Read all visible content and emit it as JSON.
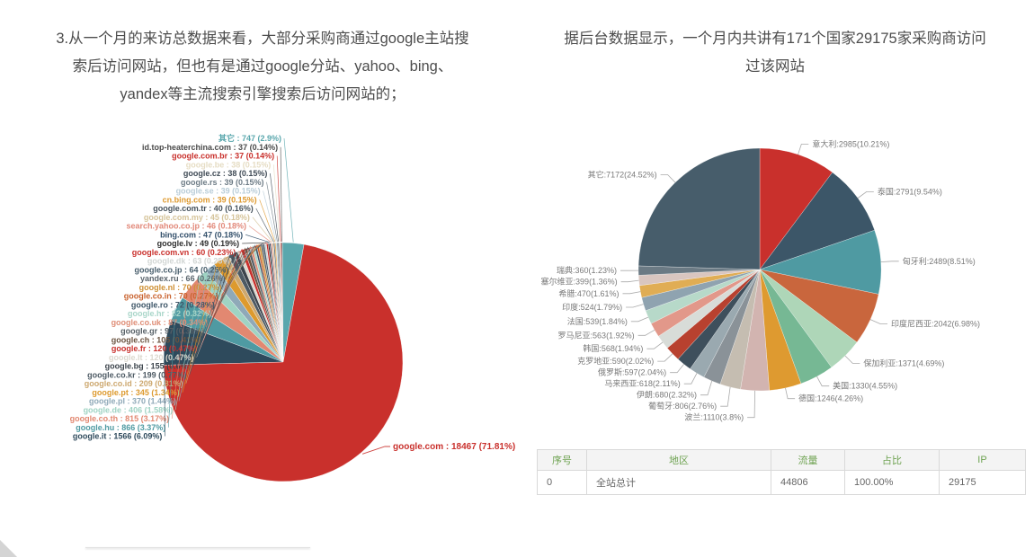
{
  "texts": {
    "left_paragraph": "3.从一个月的来访总数据来看，大部分采购商通过google主站搜\n索后访问网站，但也有是通过google分站、yahoo、bing、\nyandex等主流搜索引擎搜索后访问网站的；",
    "right_paragraph": "据后台数据显示，一个月内共讲有171个国家29175家采购商访问\n过该网站"
  },
  "chart_data": [
    {
      "id": "search-engine-sources",
      "type": "pie",
      "title": "",
      "label_format": "{label} : {value} ({pct})",
      "direction": "counterclockwise",
      "start_angle_deg_cw_from_top": 10,
      "legend_position": "stacked-left",
      "slices": [
        {
          "label": "其它",
          "value": 747,
          "pct": "2.9%",
          "color": "#5aa7ad"
        },
        {
          "label": "id.top-heaterchina.com",
          "value": 37,
          "pct": "0.14%",
          "color": "#4a4a4a"
        },
        {
          "label": "google.com.br",
          "value": 37,
          "pct": "0.14%",
          "color": "#c9302c"
        },
        {
          "label": "google.be",
          "value": 38,
          "pct": "0.15%",
          "color": "#e6ddc4"
        },
        {
          "label": "google.cz",
          "value": 38,
          "pct": "0.15%",
          "color": "#3f4a55"
        },
        {
          "label": "google.rs",
          "value": 39,
          "pct": "0.15%",
          "color": "#6d7b85"
        },
        {
          "label": "google.se",
          "value": 39,
          "pct": "0.15%",
          "color": "#b9cdd8"
        },
        {
          "label": "cn.bing.com",
          "value": 39,
          "pct": "0.15%",
          "color": "#de9a30"
        },
        {
          "label": "google.com.tr",
          "value": 40,
          "pct": "0.16%",
          "color": "#46525c"
        },
        {
          "label": "google.com.my",
          "value": 45,
          "pct": "0.18%",
          "color": "#d6c49a"
        },
        {
          "label": "search.yahoo.co.jp",
          "value": 46,
          "pct": "0.18%",
          "color": "#e2897a"
        },
        {
          "label": "bing.com",
          "value": 47,
          "pct": "0.18%",
          "color": "#33506b"
        },
        {
          "label": "google.lv",
          "value": 49,
          "pct": "0.19%",
          "color": "#2f2f2f"
        },
        {
          "label": "google.com.vn",
          "value": 60,
          "pct": "0.23%",
          "color": "#c9302c"
        },
        {
          "label": "google.dk",
          "value": 63,
          "pct": "0.25%",
          "color": "#d2d6d4"
        },
        {
          "label": "google.co.jp",
          "value": 64,
          "pct": "0.25%",
          "color": "#475d6b"
        },
        {
          "label": "yandex.ru",
          "value": 66,
          "pct": "0.26%",
          "color": "#5a646c"
        },
        {
          "label": "google.nl",
          "value": 70,
          "pct": "0.27%",
          "color": "#cf9136"
        },
        {
          "label": "google.co.in",
          "value": 70,
          "pct": "0.27%",
          "color": "#c9632f"
        },
        {
          "label": "google.ro",
          "value": 72,
          "pct": "0.28%",
          "color": "#3e5668"
        },
        {
          "label": "google.hr",
          "value": 82,
          "pct": "0.32%",
          "color": "#a9d6c9"
        },
        {
          "label": "google.co.uk",
          "value": 87,
          "pct": "0.34%",
          "color": "#df8d76"
        },
        {
          "label": "google.gr",
          "value": 97,
          "pct": "0.38%",
          "color": "#555f66"
        },
        {
          "label": "google.ch",
          "value": 105,
          "pct": "0.41%",
          "color": "#6b5340"
        },
        {
          "label": "google.fr",
          "value": 120,
          "pct": "0.47%",
          "color": "#c9302c"
        },
        {
          "label": "google.lt",
          "value": 120,
          "pct": "0.47%",
          "color": "#dcd8ce"
        },
        {
          "label": "google.bg",
          "value": 155,
          "pct": "0.6%",
          "color": "#3c444c"
        },
        {
          "label": "google.co.kr",
          "value": 199,
          "pct": "0.77%",
          "color": "#4d5a64"
        },
        {
          "label": "google.co.id",
          "value": 209,
          "pct": "0.81%",
          "color": "#cda86f"
        },
        {
          "label": "google.pt",
          "value": 345,
          "pct": "1.34%",
          "color": "#dd9a2e"
        },
        {
          "label": "google.pl",
          "value": 370,
          "pct": "1.44%",
          "color": "#8fa9b8"
        },
        {
          "label": "google.de",
          "value": 406,
          "pct": "1.58%",
          "color": "#9fd3c3"
        },
        {
          "label": "google.co.th",
          "value": 815,
          "pct": "3.17%",
          "color": "#e28871"
        },
        {
          "label": "google.hu",
          "value": 866,
          "pct": "3.37%",
          "color": "#4f9aa2"
        },
        {
          "label": "google.it",
          "value": 1566,
          "pct": "6.09%",
          "color": "#2e4a5c"
        },
        {
          "label": "google.com",
          "value": 18467,
          "pct": "71.81%",
          "color": "#c9302c"
        }
      ]
    },
    {
      "id": "visitor-countries",
      "type": "pie",
      "title": "",
      "label_format": "{label}:{value}({pct})",
      "direction": "clockwise",
      "start_angle_deg_cw_from_top": 0,
      "label_color": "#7a7a7a",
      "slices": [
        {
          "label": "意大利",
          "value": 2985,
          "pct": "10.21%",
          "color": "#c9302c"
        },
        {
          "label": "泰国",
          "value": 2791,
          "pct": "9.54%",
          "color": "#3c5668"
        },
        {
          "label": "匈牙利",
          "value": 2489,
          "pct": "8.51%",
          "color": "#4f9aa2"
        },
        {
          "label": "印度尼西亚",
          "value": 2042,
          "pct": "6.98%",
          "color": "#c9663d"
        },
        {
          "label": "保加利亚",
          "value": 1371,
          "pct": "4.69%",
          "color": "#aed6b8"
        },
        {
          "label": "美国",
          "value": 1330,
          "pct": "4.55%",
          "color": "#76b894"
        },
        {
          "label": "德国",
          "value": 1246,
          "pct": "4.26%",
          "color": "#de9a30"
        },
        {
          "label": "波兰",
          "value": 1110,
          "pct": "3.8%",
          "color": "#d2b4b0"
        },
        {
          "label": "葡萄牙",
          "value": 806,
          "pct": "2.76%",
          "color": "#c5bdb1"
        },
        {
          "label": "伊朗",
          "value": 680,
          "pct": "2.32%",
          "color": "#8a9298"
        },
        {
          "label": "马来西亚",
          "value": 618,
          "pct": "2.11%",
          "color": "#9aa9b0"
        },
        {
          "label": "俄罗斯",
          "value": 597,
          "pct": "2.04%",
          "color": "#3e4f5c"
        },
        {
          "label": "克罗地亚",
          "value": 590,
          "pct": "2.02%",
          "color": "#b8412f"
        },
        {
          "label": "韩国",
          "value": 568,
          "pct": "1.94%",
          "color": "#d8dcd8"
        },
        {
          "label": "罗马尼亚",
          "value": 563,
          "pct": "1.92%",
          "color": "#e2988a"
        },
        {
          "label": "法国",
          "value": 539,
          "pct": "1.84%",
          "color": "#b7d9c9"
        },
        {
          "label": "印度",
          "value": 524,
          "pct": "1.79%",
          "color": "#8fa3b0"
        },
        {
          "label": "希腊",
          "value": 470,
          "pct": "1.61%",
          "color": "#e0ad54"
        },
        {
          "label": "塞尔维亚",
          "value": 399,
          "pct": "1.36%",
          "color": "#d9c6c0"
        },
        {
          "label": "瑞典",
          "value": 360,
          "pct": "1.23%",
          "color": "#6b7a84"
        },
        {
          "label": "其它",
          "value": 7172,
          "pct": "24.52%",
          "color": "#475d6b"
        }
      ]
    }
  ],
  "table": {
    "headers": [
      "序号",
      "地区",
      "流量",
      "占比",
      "IP"
    ],
    "rows": [
      [
        "0",
        "全站总计",
        "44806",
        "100.00%",
        "29175"
      ]
    ]
  }
}
